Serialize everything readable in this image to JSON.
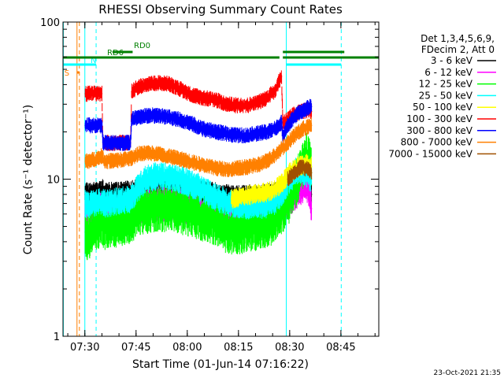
{
  "chart_data": {
    "type": "line",
    "title": "RHESSI Observing Summary Count Rates",
    "xlabel": "Start Time (01-Jun-14 07:16:22)",
    "ylabel": "Count Rate (s⁻¹ detector⁻¹)",
    "y_scale": "log",
    "ylim": [
      1,
      100
    ],
    "xlim_minutes": [
      7.2,
      99.7
    ],
    "x_ticks": [
      {
        "t": 13.6,
        "label": "07:30"
      },
      {
        "t": 28.6,
        "label": "07:45"
      },
      {
        "t": 43.6,
        "label": "08:00"
      },
      {
        "t": 58.6,
        "label": "08:15"
      },
      {
        "t": 73.6,
        "label": "08:30"
      },
      {
        "t": 88.6,
        "label": "08:45"
      }
    ],
    "y_ticks": [
      {
        "v": 1,
        "label": "1"
      },
      {
        "v": 10,
        "label": "10"
      },
      {
        "v": 100,
        "label": "100"
      }
    ],
    "legend": {
      "placement": "right",
      "header": [
        "Det 1,3,4,5,6,9,",
        "FDecim 2, Att 0"
      ],
      "entries": [
        {
          "name": "3 - 6 keV",
          "color": "#000000"
        },
        {
          "name": "6 - 12 keV",
          "color": "#ff00ff"
        },
        {
          "name": "12 - 25 keV",
          "color": "#00ff00"
        },
        {
          "name": "25 - 50 keV",
          "color": "#00ffff"
        },
        {
          "name": "50 - 100 keV",
          "color": "#ffff00"
        },
        {
          "name": "100 - 300 keV",
          "color": "#ff0000"
        },
        {
          "name": "300 - 800 keV",
          "color": "#0000ff"
        },
        {
          "name": "800 - 7000 keV",
          "color": "#ff8000"
        },
        {
          "name": "7000 - 15000 keV",
          "color": "#a05000"
        }
      ]
    },
    "series": [
      {
        "name": "3 - 6 keV",
        "color": "#000000",
        "noise": 0.06,
        "x": [
          13.7,
          14.3,
          18.2,
          18.9,
          19.2,
          27.0,
          29.5,
          33.5,
          39.0,
          44.0,
          48.5,
          53.0,
          56.5,
          60.0,
          64.0,
          68.0,
          70.5,
          73.0,
          75.5,
          78.0,
          79.2,
          80.0
        ],
        "y": [
          8.0,
          8.0,
          8.2,
          8.5,
          8.0,
          8.2,
          8.6,
          8.8,
          8.9,
          8.5,
          8.2,
          7.9,
          7.7,
          7.7,
          7.8,
          7.9,
          8.3,
          9.0,
          10.0,
          11.5,
          10.5,
          8.0
        ]
      },
      {
        "name": "6 - 12 keV",
        "color": "#ff00ff",
        "noise": 0.09,
        "x": [
          13.7,
          14.0,
          14.6,
          16.0,
          18.5,
          19.5,
          23.0,
          27.5,
          29.5,
          33.0,
          38.0,
          43.5,
          48.5,
          53.0,
          57.0,
          61.0,
          65.0,
          68.5,
          71.0,
          73.5,
          76.0,
          78.5,
          79.4,
          80.0
        ],
        "y": [
          6.0,
          5.0,
          4.2,
          6.0,
          6.3,
          6.0,
          6.0,
          6.3,
          6.8,
          7.0,
          7.0,
          6.7,
          6.3,
          6.0,
          5.8,
          5.8,
          5.9,
          6.0,
          6.6,
          7.5,
          8.5,
          9.5,
          8.0,
          6.5
        ]
      },
      {
        "name": "12 - 25 keV",
        "color": "#00ff00",
        "noise": 0.12,
        "x": [
          13.7,
          14.3,
          17.0,
          18.5,
          19.5,
          23.0,
          27.5,
          29.5,
          33.0,
          38.0,
          43.5,
          48.5,
          53.0,
          55.0,
          57.5,
          61.0,
          65.0,
          68.5,
          71.0,
          73.5,
          76.0,
          78.5,
          79.5,
          80.0
        ],
        "y": [
          4.6,
          4.3,
          5.0,
          5.3,
          5.0,
          5.2,
          5.6,
          6.2,
          6.5,
          6.6,
          6.2,
          5.7,
          5.3,
          4.8,
          4.7,
          4.8,
          5.0,
          5.4,
          6.2,
          7.5,
          10.0,
          14.0,
          13.0,
          11.0
        ]
      },
      {
        "name": "25 - 50 keV",
        "color": "#00ffff",
        "noise": 0.07,
        "x": [
          13.7,
          14.3,
          17.0,
          18.5,
          19.5,
          23.0,
          27.0,
          29.5,
          31.5,
          35.0,
          40.0,
          44.0,
          48.5,
          53.0,
          57.0,
          61.0,
          65.0,
          68.5,
          71.0,
          73.5,
          76.0,
          78.5,
          80.0
        ],
        "y": [
          7.0,
          6.8,
          7.0,
          7.3,
          7.0,
          7.2,
          7.5,
          9.0,
          10.0,
          10.5,
          10.2,
          9.5,
          8.5,
          7.5,
          7.0,
          6.8,
          6.8,
          7.0,
          8.0,
          10.0,
          11.5,
          11.0,
          10.0
        ]
      },
      {
        "name": "50 - 100 keV",
        "color": "#ffff00",
        "noise": 0.05,
        "x": [
          56.5,
          60.0,
          63.0,
          66.0,
          69.0,
          71.5,
          73.5,
          76.0,
          78.5,
          80.0
        ],
        "y": [
          7.5,
          7.8,
          8.0,
          8.2,
          8.5,
          9.5,
          11.0,
          12.0,
          12.5,
          12.0
        ]
      },
      {
        "name": "100 - 300 keV",
        "color": "#ff0000",
        "noise": 0.04,
        "x": [
          13.7,
          14.3,
          18.6,
          18.9,
          22.6,
          23.5,
          27.0,
          27.3,
          29.5,
          32.0,
          35.0,
          38.0,
          41.0,
          44.0,
          48.0,
          52.0,
          55.0,
          58.0,
          61.0,
          64.0,
          67.0,
          69.5,
          70.5,
          71.2,
          71.6,
          73.0,
          75.0,
          77.0,
          79.0,
          80.0
        ],
        "y": [
          35.0,
          35.0,
          35.0,
          17.0,
          17.0,
          17.0,
          17.0,
          36.0,
          39.0,
          40.0,
          41.0,
          40.5,
          38.0,
          35.0,
          33.0,
          32.0,
          30.0,
          29.5,
          29.5,
          30.5,
          33.0,
          37.0,
          42.0,
          45.0,
          23.0,
          24.0,
          26.0,
          27.0,
          27.5,
          27.0
        ]
      },
      {
        "name": "300 - 800 keV",
        "color": "#0000ff",
        "noise": 0.04,
        "x": [
          13.7,
          14.3,
          18.6,
          18.9,
          22.6,
          23.5,
          27.0,
          27.3,
          29.5,
          33.0,
          37.0,
          41.0,
          44.0,
          48.0,
          52.0,
          55.0,
          58.0,
          61.0,
          64.0,
          67.0,
          69.5,
          71.2,
          71.6,
          73.0,
          75.0,
          77.0,
          79.0,
          80.0
        ],
        "y": [
          22.0,
          22.0,
          22.0,
          17.0,
          17.0,
          17.0,
          17.0,
          24.0,
          25.0,
          25.5,
          25.0,
          24.0,
          23.0,
          21.0,
          20.0,
          19.5,
          19.0,
          19.0,
          19.5,
          20.0,
          21.0,
          23.0,
          19.0,
          22.0,
          25.0,
          27.0,
          28.5,
          29.0
        ]
      },
      {
        "name": "800 - 7000 keV",
        "color": "#ff8000",
        "noise": 0.04,
        "x": [
          13.7,
          14.3,
          17.0,
          18.5,
          19.5,
          23.0,
          27.0,
          29.5,
          32.0,
          35.0,
          38.0,
          41.0,
          44.0,
          47.0,
          50.0,
          53.0,
          56.0,
          59.0,
          62.0,
          65.0,
          68.0,
          70.5,
          73.0,
          75.0,
          77.5,
          80.0
        ],
        "y": [
          13.0,
          13.0,
          13.5,
          14.0,
          13.0,
          13.2,
          13.5,
          14.5,
          14.6,
          14.5,
          14.0,
          13.5,
          13.0,
          12.5,
          12.0,
          11.7,
          11.5,
          11.8,
          12.0,
          12.5,
          13.5,
          15.0,
          17.0,
          19.0,
          21.0,
          22.0
        ]
      },
      {
        "name": "7000 - 15000 keV",
        "color": "#a05000",
        "noise": 0.04,
        "x": [
          73.0,
          75.0,
          77.0,
          79.0,
          80.0
        ],
        "y": [
          10.0,
          11.0,
          12.0,
          11.5,
          11.0
        ]
      }
    ],
    "vertical_lines": [
      {
        "t": 7.3,
        "color": "#00ffff",
        "style": "solid"
      },
      {
        "t": 13.6,
        "color": "#00ffff",
        "style": "solid"
      },
      {
        "t": 16.9,
        "color": "#00ffff",
        "style": "dashed"
      },
      {
        "t": 72.6,
        "color": "#00ffff",
        "style": "solid"
      },
      {
        "t": 88.7,
        "color": "#00ffff",
        "style": "dashed"
      },
      {
        "t": 11.3,
        "color": "#ff8000",
        "style": "solid"
      },
      {
        "t": 12.0,
        "color": "#ff8000",
        "style": "dashed"
      }
    ],
    "status_bars": [
      {
        "label": "S",
        "color": "#ff8000",
        "y": 92,
        "segments": [
          [
            11.3,
            12.0
          ]
        ]
      },
      {
        "label": "N",
        "color": "#00ffff",
        "y": 82,
        "segments": [
          [
            7.3,
            16.9
          ],
          [
            72.6,
            88.7
          ]
        ]
      },
      {
        "label": "RD0",
        "color": "#008000",
        "y": 73,
        "segments": [
          [
            7.3,
            70.6
          ],
          [
            71.6,
            99.7
          ]
        ]
      },
      {
        "label": "RD6",
        "color": "#008000",
        "y": 66,
        "segments": [
          [
            21.7,
            27.6
          ],
          [
            71.6,
            89.6
          ]
        ]
      }
    ],
    "footer": "23-Oct-2021 21:35"
  }
}
